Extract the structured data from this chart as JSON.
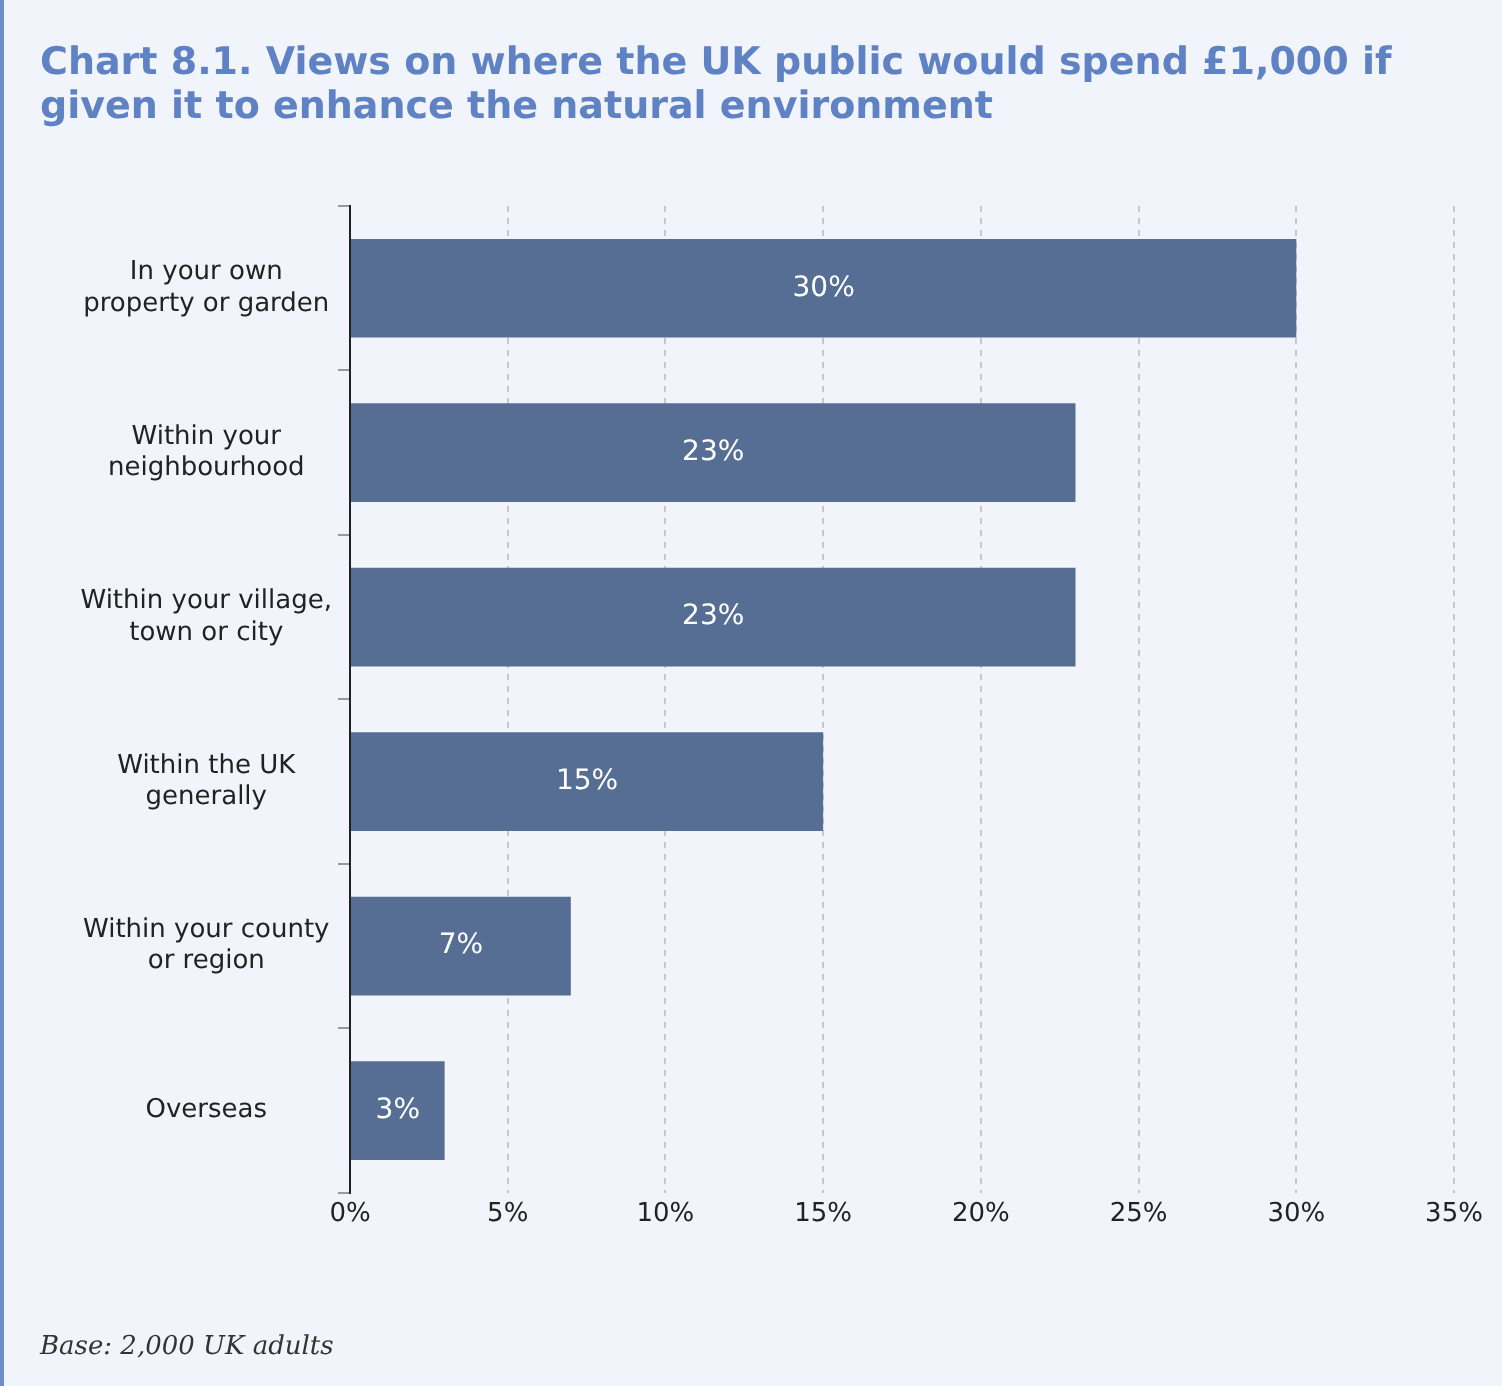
{
  "chart_data": {
    "type": "bar",
    "orientation": "horizontal",
    "title": "Chart 8.1. Views on where the UK public would spend £1,000 if given it to enhance the natural environment",
    "categories": [
      "In your own\nproperty or garden",
      "Within your\nneighbourhood",
      "Within your village,\ntown or city",
      "Within the UK\ngenerally",
      "Within your county\nor region",
      "Overseas"
    ],
    "values": [
      30,
      23,
      23,
      15,
      7,
      3
    ],
    "value_labels": [
      "30%",
      "23%",
      "23%",
      "15%",
      "7%",
      "3%"
    ],
    "color": "#566e94",
    "xlim": [
      0,
      35
    ],
    "xticks": [
      {
        "value": 0,
        "label": "0%"
      },
      {
        "value": 5,
        "label": "5%"
      },
      {
        "value": 10,
        "label": "10%"
      },
      {
        "value": 15,
        "label": "15%"
      },
      {
        "value": 20,
        "label": "20%"
      },
      {
        "value": 25,
        "label": "25%"
      },
      {
        "value": 30,
        "label": "30%"
      },
      {
        "value": 35,
        "label": "35%"
      }
    ],
    "grid": "x",
    "annotations": [
      "Base: 2,000 UK adults"
    ]
  }
}
